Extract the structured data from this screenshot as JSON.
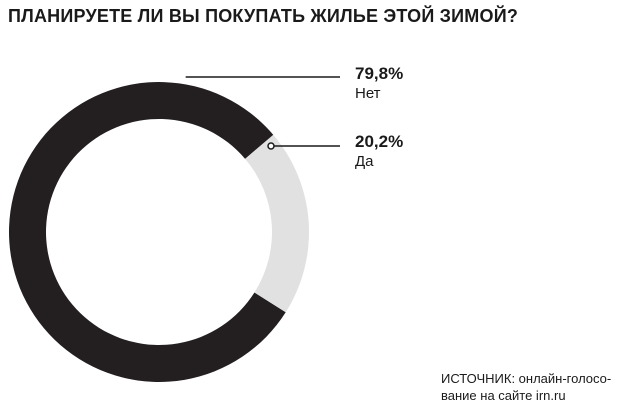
{
  "chart_data": {
    "type": "pie",
    "title": "ПЛАНИРУЕТЕ ЛИ ВЫ ПОКУПАТЬ ЖИЛЬЕ ЭТОЙ ЗИМОЙ?",
    "categories": [
      "Нет",
      "Да"
    ],
    "values": [
      79.8,
      20.2
    ],
    "value_labels": [
      "79,8%",
      "20,2%"
    ],
    "colors": [
      "#231f20",
      "#e1e1e1"
    ],
    "donut": true
  },
  "source": {
    "line1": "ИСТОЧНИК: онлайн-голосо-",
    "line2": "вание на сайте irn.ru"
  }
}
